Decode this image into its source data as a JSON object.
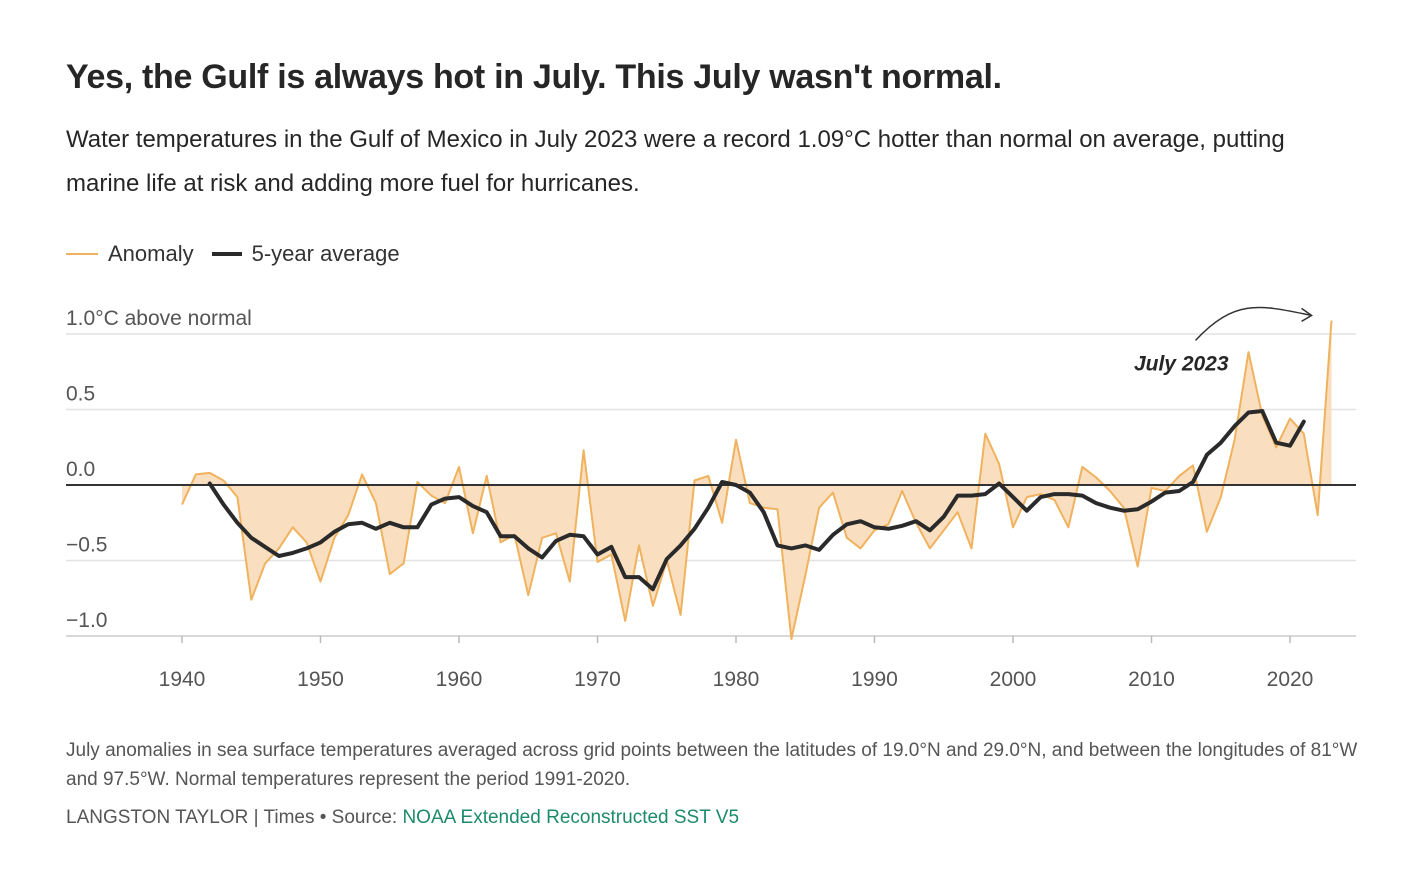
{
  "title": "Yes, the Gulf is always hot in July. This July wasn't normal.",
  "subtitle": "Water temperatures in the Gulf of Mexico in July 2023 were a record 1.09°C hotter than normal on average, putting marine life at risk and adding more fuel for hurricanes.",
  "legend": {
    "anomaly": "Anomaly",
    "average": "5-year average"
  },
  "notes": "July anomalies in sea surface temperatures averaged across grid points between the latitudes of 19.0°N and 29.0°N, and between the longitudes of 81°W and 97.5°W. Normal temperatures represent the period 1991-2020.",
  "credit": {
    "byline": "LANGSTON TAYLOR | Times • Source: ",
    "source": "NOAA Extended Reconstructed SST V5"
  },
  "colors": {
    "anomaly_line": "#f0b25e",
    "anomaly_fill": "#f9dfbf",
    "average_line": "#2a2a2a",
    "link": "#1d8a6c"
  },
  "chart_data": {
    "type": "area",
    "title": "",
    "xlabel": "",
    "ylabel": "",
    "xlim": [
      1932,
      2025
    ],
    "ylim": [
      -1.1,
      1.15
    ],
    "x_ticks": [
      1940,
      1950,
      1960,
      1970,
      1980,
      1990,
      2000,
      2010,
      2020
    ],
    "y_ticks": [
      {
        "value": 1.0,
        "label": "1.0°C above normal"
      },
      {
        "value": 0.5,
        "label": "0.5"
      },
      {
        "value": 0.0,
        "label": "0.0"
      },
      {
        "value": -0.5,
        "label": "−0.5"
      },
      {
        "value": -1.0,
        "label": "−1.0"
      }
    ],
    "annotation": {
      "text": "July 2023",
      "year": 2023,
      "value": 1.09
    },
    "series": [
      {
        "name": "Anomaly",
        "x": [
          1940,
          1941,
          1942,
          1943,
          1944,
          1945,
          1946,
          1947,
          1948,
          1949,
          1950,
          1951,
          1952,
          1953,
          1954,
          1955,
          1956,
          1957,
          1958,
          1959,
          1960,
          1961,
          1962,
          1963,
          1964,
          1965,
          1966,
          1967,
          1968,
          1969,
          1970,
          1971,
          1972,
          1973,
          1974,
          1975,
          1976,
          1977,
          1978,
          1979,
          1980,
          1981,
          1982,
          1983,
          1984,
          1985,
          1986,
          1987,
          1988,
          1989,
          1990,
          1991,
          1992,
          1993,
          1994,
          1995,
          1996,
          1997,
          1998,
          1999,
          2000,
          2001,
          2002,
          2003,
          2004,
          2005,
          2006,
          2007,
          2008,
          2009,
          2010,
          2011,
          2012,
          2013,
          2014,
          2015,
          2016,
          2017,
          2018,
          2019,
          2020,
          2021,
          2022,
          2023
        ],
        "values": [
          -0.13,
          0.07,
          0.08,
          0.03,
          -0.08,
          -0.76,
          -0.52,
          -0.42,
          -0.28,
          -0.38,
          -0.64,
          -0.35,
          -0.2,
          0.07,
          -0.12,
          -0.59,
          -0.52,
          0.02,
          -0.07,
          -0.12,
          0.12,
          -0.32,
          0.06,
          -0.38,
          -0.33,
          -0.73,
          -0.35,
          -0.32,
          -0.64,
          0.23,
          -0.51,
          -0.46,
          -0.9,
          -0.4,
          -0.8,
          -0.5,
          -0.86,
          0.03,
          0.06,
          -0.25,
          0.3,
          -0.12,
          -0.15,
          -0.16,
          -1.02,
          -0.6,
          -0.15,
          -0.05,
          -0.35,
          -0.42,
          -0.3,
          -0.26,
          -0.04,
          -0.25,
          -0.42,
          -0.3,
          -0.18,
          -0.42,
          0.34,
          0.14,
          -0.28,
          -0.08,
          -0.06,
          -0.1,
          -0.28,
          0.12,
          0.05,
          -0.04,
          -0.15,
          -0.54,
          -0.02,
          -0.04,
          0.06,
          0.13,
          -0.31,
          -0.08,
          0.3,
          0.88,
          0.46,
          0.25,
          0.44,
          0.34,
          -0.2,
          1.09
        ]
      },
      {
        "name": "5-year average",
        "x": [
          1942,
          1943,
          1944,
          1945,
          1946,
          1947,
          1948,
          1949,
          1950,
          1951,
          1952,
          1953,
          1954,
          1955,
          1956,
          1957,
          1958,
          1959,
          1960,
          1961,
          1962,
          1963,
          1964,
          1965,
          1966,
          1967,
          1968,
          1969,
          1970,
          1971,
          1972,
          1973,
          1974,
          1975,
          1976,
          1977,
          1978,
          1979,
          1980,
          1981,
          1982,
          1983,
          1984,
          1985,
          1986,
          1987,
          1988,
          1989,
          1990,
          1991,
          1992,
          1993,
          1994,
          1995,
          1996,
          1997,
          1998,
          1999,
          2000,
          2001,
          2002,
          2003,
          2004,
          2005,
          2006,
          2007,
          2008,
          2009,
          2010,
          2011,
          2012,
          2013,
          2014,
          2015,
          2016,
          2017,
          2018,
          2019,
          2020,
          2021
        ],
        "values": [
          0.01,
          -0.13,
          -0.25,
          -0.35,
          -0.41,
          -0.47,
          -0.45,
          -0.42,
          -0.38,
          -0.31,
          -0.26,
          -0.25,
          -0.29,
          -0.25,
          -0.28,
          -0.28,
          -0.13,
          -0.09,
          -0.08,
          -0.14,
          -0.18,
          -0.34,
          -0.34,
          -0.42,
          -0.48,
          -0.37,
          -0.33,
          -0.34,
          -0.46,
          -0.41,
          -0.61,
          -0.61,
          -0.69,
          -0.49,
          -0.4,
          -0.29,
          -0.15,
          0.02,
          0.0,
          -0.05,
          -0.18,
          -0.4,
          -0.42,
          -0.4,
          -0.43,
          -0.33,
          -0.26,
          -0.24,
          -0.28,
          -0.29,
          -0.27,
          -0.24,
          -0.3,
          -0.21,
          -0.07,
          -0.07,
          -0.06,
          0.01,
          -0.08,
          -0.17,
          -0.08,
          -0.06,
          -0.06,
          -0.07,
          -0.12,
          -0.15,
          -0.17,
          -0.16,
          -0.11,
          -0.05,
          -0.04,
          0.02,
          0.2,
          0.28,
          0.39,
          0.48,
          0.49,
          0.28,
          0.26,
          0.42
        ]
      }
    ]
  }
}
